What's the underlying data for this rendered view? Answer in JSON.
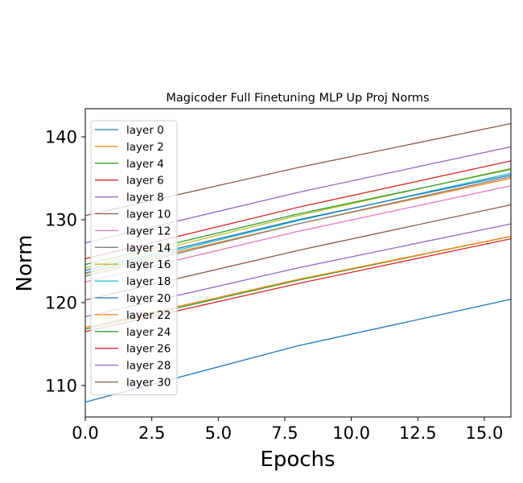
{
  "chart_data": {
    "type": "line",
    "title": "Magicoder Full Finetuning MLP Up Proj Norms",
    "xlabel": "Epochs",
    "ylabel": "Norm",
    "xlim": [
      0,
      16
    ],
    "ylim": [
      106.2,
      143.4
    ],
    "xticks": [
      0,
      2.5,
      5,
      7.5,
      10,
      12.5,
      15
    ],
    "xtick_labels": [
      "0.0",
      "2.5",
      "5.0",
      "7.5",
      "10.0",
      "12.5",
      "15.0"
    ],
    "yticks": [
      110,
      120,
      130,
      140
    ],
    "ytick_labels": [
      "110",
      "120",
      "130",
      "140"
    ],
    "grid": false,
    "legend_position": "upper-left",
    "series": [
      {
        "name": "layer 0",
        "color": "#1f77b4",
        "x": [
          0,
          8,
          16
        ],
        "y": [
          108.0,
          114.8,
          120.4
        ]
      },
      {
        "name": "layer 2",
        "color": "#ff7f0e",
        "x": [
          0,
          8,
          16
        ],
        "y": [
          123.5,
          129.5,
          135.0
        ]
      },
      {
        "name": "layer 4",
        "color": "#2ca02c",
        "x": [
          0,
          8,
          16
        ],
        "y": [
          116.8,
          122.7,
          128.0
        ]
      },
      {
        "name": "layer 6",
        "color": "#d62728",
        "x": [
          0,
          8,
          16
        ],
        "y": [
          116.5,
          122.3,
          127.7
        ]
      },
      {
        "name": "layer 8",
        "color": "#9467bd",
        "x": [
          0,
          8,
          16
        ],
        "y": [
          118.3,
          124.2,
          129.5
        ]
      },
      {
        "name": "layer 10",
        "color": "#8c564b",
        "x": [
          0,
          8,
          16
        ],
        "y": [
          120.3,
          126.3,
          131.8
        ]
      },
      {
        "name": "layer 12",
        "color": "#e377c2",
        "x": [
          0,
          8,
          16
        ],
        "y": [
          122.5,
          128.6,
          134.1
        ]
      },
      {
        "name": "layer 14",
        "color": "#7f7f7f",
        "x": [
          0,
          8,
          16
        ],
        "y": [
          123.2,
          129.5,
          135.2
        ]
      },
      {
        "name": "layer 16",
        "color": "#bcbd22",
        "x": [
          0,
          8,
          16
        ],
        "y": [
          124.2,
          130.5,
          136.2
        ]
      },
      {
        "name": "layer 18",
        "color": "#17becf",
        "x": [
          0,
          8,
          16
        ],
        "y": [
          123.6,
          129.9,
          135.6
        ]
      },
      {
        "name": "layer 20",
        "color": "#1f77b4",
        "x": [
          0,
          8,
          16
        ],
        "y": [
          123.9,
          130.0,
          135.4
        ]
      },
      {
        "name": "layer 22",
        "color": "#ff7f0e",
        "x": [
          0,
          8,
          16
        ],
        "y": [
          117.0,
          122.8,
          128.0
        ]
      },
      {
        "name": "layer 24",
        "color": "#2ca02c",
        "x": [
          0,
          8,
          16
        ],
        "y": [
          124.6,
          130.7,
          136.1
        ]
      },
      {
        "name": "layer 26",
        "color": "#d62728",
        "x": [
          0,
          8,
          16
        ],
        "y": [
          125.3,
          131.5,
          137.1
        ]
      },
      {
        "name": "layer 28",
        "color": "#9467bd",
        "x": [
          0,
          8,
          16
        ],
        "y": [
          127.2,
          133.3,
          138.8
        ]
      },
      {
        "name": "layer 30",
        "color": "#8c564b",
        "x": [
          0,
          8,
          16
        ],
        "y": [
          130.5,
          136.3,
          141.6
        ]
      }
    ]
  }
}
